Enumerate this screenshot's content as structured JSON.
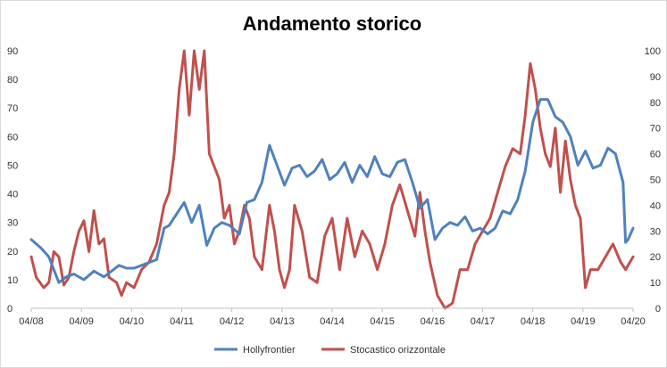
{
  "chart_data": {
    "type": "line",
    "title": "Andamento storico",
    "x_tick_labels": [
      "04/08",
      "04/09",
      "04/10",
      "04/11",
      "04/12",
      "04/13",
      "04/14",
      "04/15",
      "04/16",
      "04/17",
      "04/18",
      "04/19",
      "04/20"
    ],
    "y_left": {
      "range": [
        0,
        90
      ],
      "ticks": [
        0,
        10,
        20,
        30,
        40,
        50,
        60,
        70,
        80,
        90
      ]
    },
    "y_right": {
      "range": [
        0,
        100
      ],
      "ticks": [
        0,
        10,
        20,
        30,
        40,
        50,
        60,
        70,
        80,
        90,
        100
      ]
    },
    "grid": false,
    "legend_position": "bottom",
    "series": [
      {
        "name": "Hollyfrontier",
        "axis": "left",
        "color": "#4f81bd",
        "x": [
          2008.25,
          2008.45,
          2008.6,
          2008.8,
          2008.95,
          2009.1,
          2009.3,
          2009.5,
          2009.7,
          2009.85,
          2010.0,
          2010.15,
          2010.3,
          2010.45,
          2010.6,
          2010.75,
          2010.9,
          2011.0,
          2011.15,
          2011.3,
          2011.45,
          2011.6,
          2011.75,
          2011.9,
          2012.05,
          2012.2,
          2012.4,
          2012.55,
          2012.7,
          2012.85,
          2013.0,
          2013.15,
          2013.3,
          2013.45,
          2013.6,
          2013.75,
          2013.9,
          2014.05,
          2014.2,
          2014.35,
          2014.5,
          2014.65,
          2014.8,
          2014.95,
          2015.1,
          2015.25,
          2015.4,
          2015.55,
          2015.7,
          2015.85,
          2016.0,
          2016.15,
          2016.3,
          2016.45,
          2016.6,
          2016.75,
          2016.9,
          2017.05,
          2017.2,
          2017.35,
          2017.5,
          2017.65,
          2017.8,
          2017.95,
          2018.1,
          2018.25,
          2018.4,
          2018.55,
          2018.7,
          2018.85,
          2019.0,
          2019.15,
          2019.3,
          2019.45,
          2019.6,
          2019.75,
          2019.9,
          2020.05,
          2020.1,
          2020.15,
          2020.25
        ],
        "values": [
          24,
          21,
          18,
          9,
          11,
          12,
          10,
          13,
          11,
          13,
          15,
          14,
          14,
          15,
          16,
          17,
          28,
          29,
          33,
          37,
          30,
          36,
          22,
          28,
          30,
          29,
          26,
          37,
          38,
          44,
          57,
          50,
          43,
          49,
          50,
          46,
          48,
          52,
          45,
          47,
          51,
          44,
          50,
          46,
          53,
          47,
          46,
          51,
          52,
          44,
          35,
          38,
          24,
          28,
          30,
          29,
          32,
          27,
          28,
          26,
          28,
          34,
          33,
          38,
          48,
          65,
          73,
          73,
          67,
          65,
          60,
          50,
          55,
          49,
          50,
          56,
          54,
          44,
          23,
          24,
          28
        ]
      },
      {
        "name": "Stocastico orizzontale",
        "axis": "right",
        "color": "#c0504d",
        "x": [
          2008.25,
          2008.35,
          2008.5,
          2008.6,
          2008.7,
          2008.8,
          2008.9,
          2009.0,
          2009.1,
          2009.2,
          2009.3,
          2009.4,
          2009.5,
          2009.6,
          2009.7,
          2009.8,
          2009.95,
          2010.05,
          2010.15,
          2010.3,
          2010.45,
          2010.6,
          2010.75,
          2010.9,
          2011.0,
          2011.1,
          2011.2,
          2011.3,
          2011.4,
          2011.5,
          2011.6,
          2011.7,
          2011.8,
          2011.9,
          2012.0,
          2012.1,
          2012.2,
          2012.3,
          2012.4,
          2012.5,
          2012.6,
          2012.7,
          2012.85,
          2013.0,
          2013.1,
          2013.2,
          2013.3,
          2013.4,
          2013.5,
          2013.65,
          2013.8,
          2013.95,
          2014.1,
          2014.25,
          2014.4,
          2014.55,
          2014.7,
          2014.85,
          2015.0,
          2015.15,
          2015.3,
          2015.45,
          2015.6,
          2015.75,
          2015.9,
          2016.0,
          2016.1,
          2016.2,
          2016.35,
          2016.5,
          2016.65,
          2016.8,
          2016.95,
          2017.1,
          2017.25,
          2017.4,
          2017.55,
          2017.7,
          2017.85,
          2018.0,
          2018.1,
          2018.2,
          2018.3,
          2018.4,
          2018.5,
          2018.6,
          2018.7,
          2018.8,
          2018.9,
          2019.0,
          2019.1,
          2019.2,
          2019.3,
          2019.4,
          2019.55,
          2019.7,
          2019.85,
          2020.0,
          2020.1,
          2020.25
        ],
        "values": [
          20,
          12,
          8,
          10,
          22,
          20,
          9,
          12,
          22,
          30,
          34,
          22,
          38,
          25,
          27,
          12,
          10,
          5,
          10,
          8,
          15,
          18,
          25,
          40,
          45,
          60,
          85,
          100,
          75,
          100,
          85,
          100,
          60,
          55,
          50,
          35,
          40,
          25,
          30,
          40,
          35,
          20,
          15,
          40,
          30,
          15,
          8,
          15,
          40,
          30,
          12,
          10,
          28,
          35,
          15,
          35,
          20,
          30,
          25,
          15,
          25,
          40,
          48,
          38,
          28,
          45,
          30,
          18,
          5,
          0,
          2,
          15,
          15,
          25,
          30,
          35,
          45,
          55,
          62,
          60,
          75,
          95,
          85,
          70,
          60,
          55,
          70,
          45,
          65,
          50,
          40,
          35,
          8,
          15,
          15,
          20,
          25,
          18,
          15,
          20
        ]
      }
    ]
  }
}
